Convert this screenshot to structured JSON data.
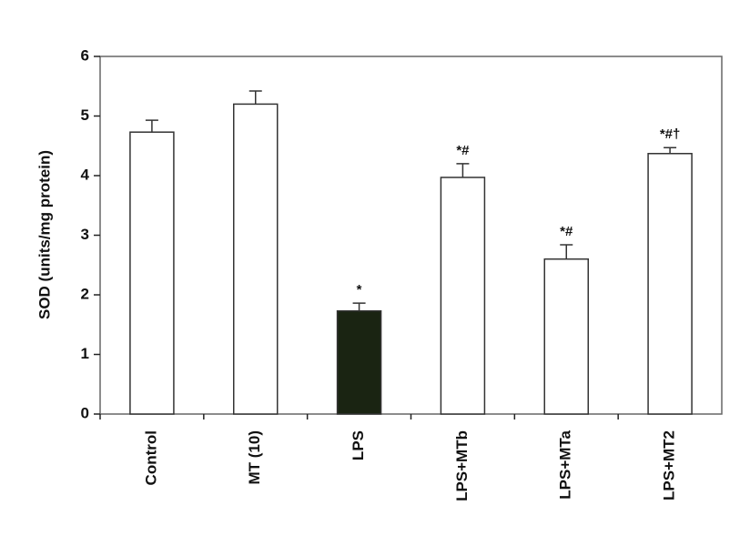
{
  "chart_data": {
    "type": "bar",
    "y_label": "SOD (units/mg protein)",
    "categories": [
      "Control",
      "MT (10)",
      "LPS",
      "LPS+MTb",
      "LPS+MTa",
      "LPS+MT2"
    ],
    "values": [
      4.73,
      5.2,
      1.73,
      3.97,
      2.6,
      4.37
    ],
    "errors": [
      0.2,
      0.22,
      0.13,
      0.23,
      0.24,
      0.1
    ],
    "annotations": [
      null,
      null,
      "*",
      "*#",
      "*#",
      "*#†"
    ],
    "colors": [
      "#ffffff",
      "#ffffff",
      "#1a2412",
      "#ffffff",
      "#ffffff",
      "#ffffff"
    ],
    "ylim": [
      0,
      6
    ],
    "yticks": [
      0,
      1,
      2,
      3,
      4,
      5,
      6
    ]
  }
}
